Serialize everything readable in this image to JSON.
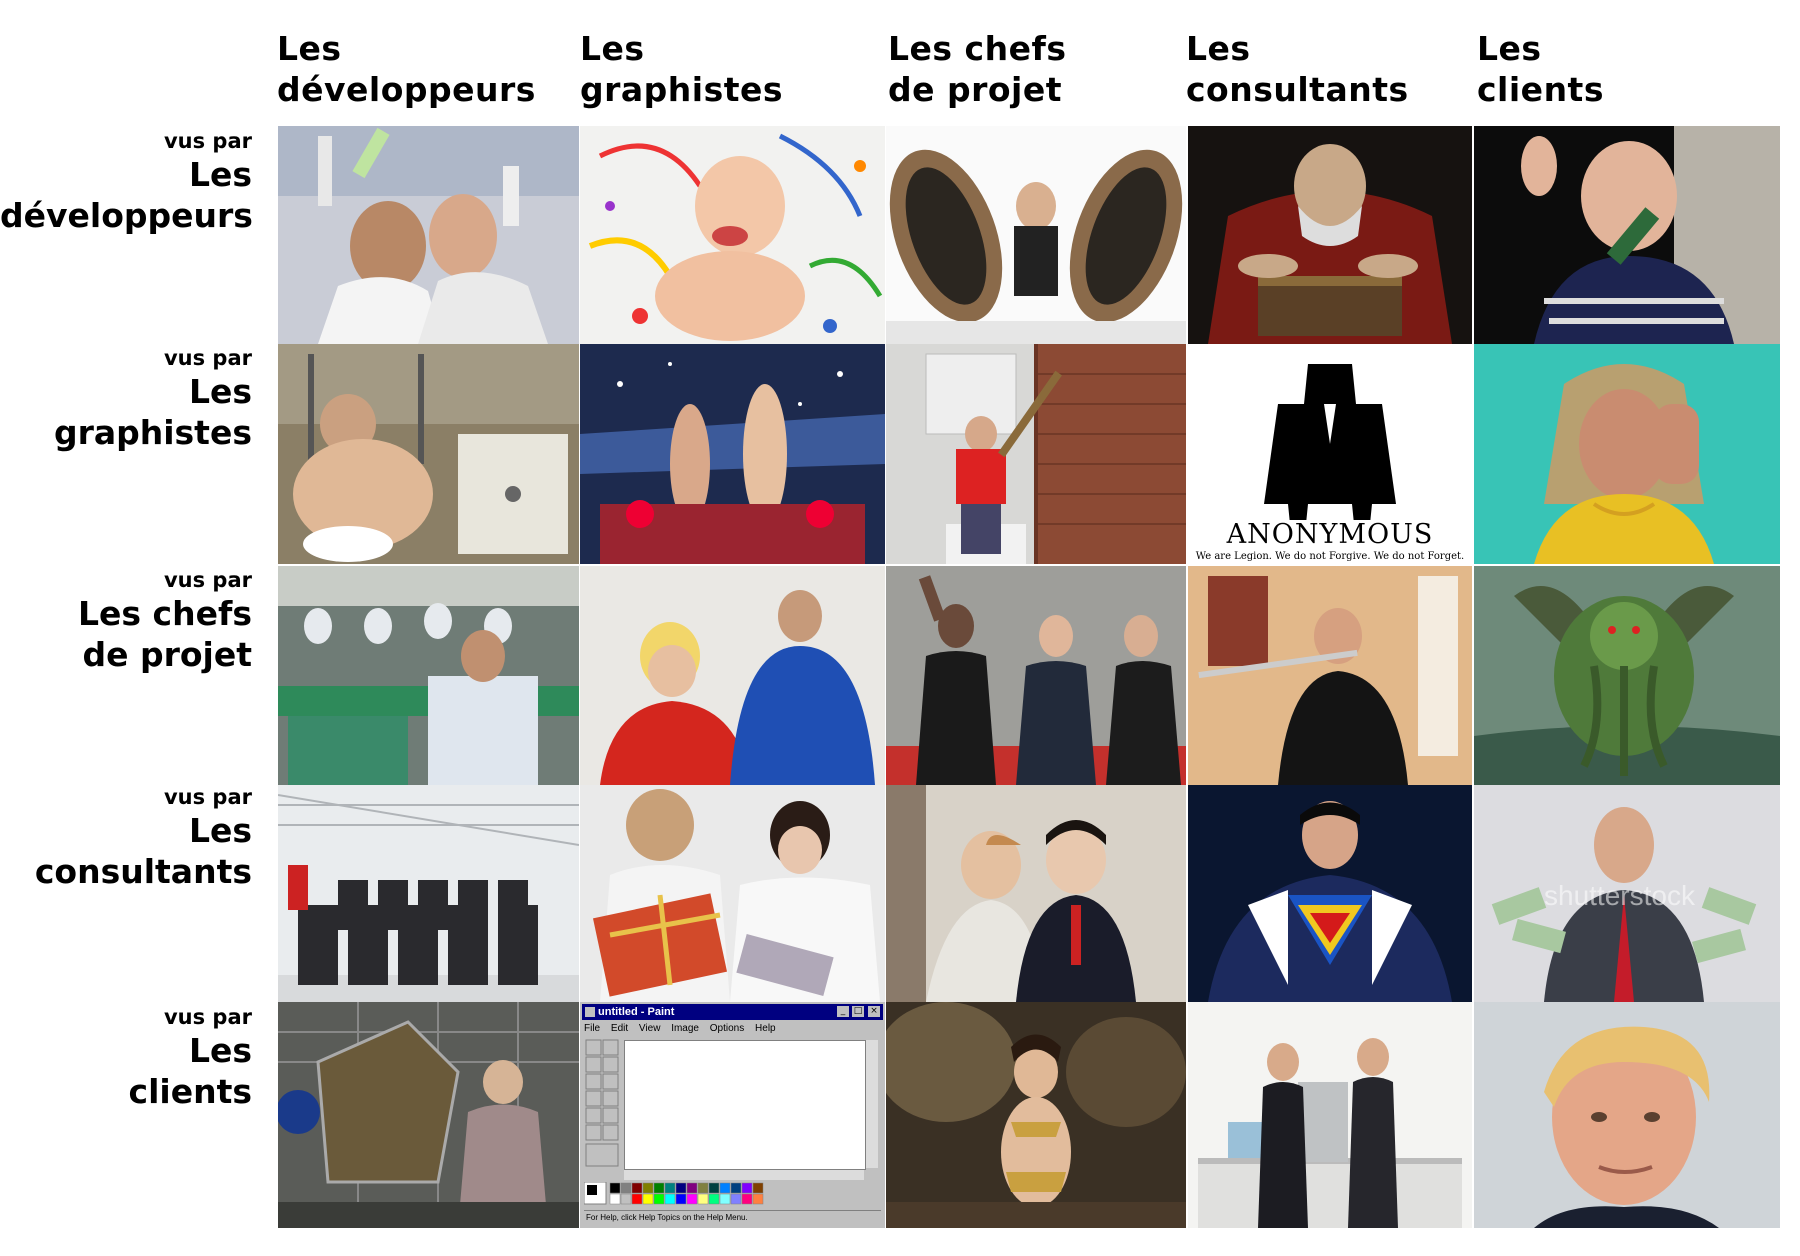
{
  "columns": [
    {
      "label": "Les\ndéveloppeurs"
    },
    {
      "label": "Les\ngraphistes"
    },
    {
      "label": "Les chefs\nde projet"
    },
    {
      "label": "Les\nconsultants"
    },
    {
      "label": "Les\nclients"
    }
  ],
  "rows": [
    {
      "prefix": "vus par",
      "label": "Les\ndéveloppeurs"
    },
    {
      "prefix": "vus par",
      "label": "Les\ngraphistes"
    },
    {
      "prefix": "vus par",
      "label": "Les chefs\nde projet"
    },
    {
      "prefix": "vus par",
      "label": "Les\nconsultants"
    },
    {
      "prefix": "vus par",
      "label": "Les\nclients"
    }
  ],
  "cells": {
    "anonymous": {
      "title": "ANONYMOUS",
      "slogan": "We are Legion. We do not Forgive. We do not Forget."
    },
    "paint": {
      "window_title": "untitled - Paint",
      "menu": [
        "File",
        "Edit",
        "View",
        "Image",
        "Options",
        "Help"
      ],
      "status": "For Help, click Help Topics on the Help Menu."
    },
    "watermark": "shutterstock"
  }
}
